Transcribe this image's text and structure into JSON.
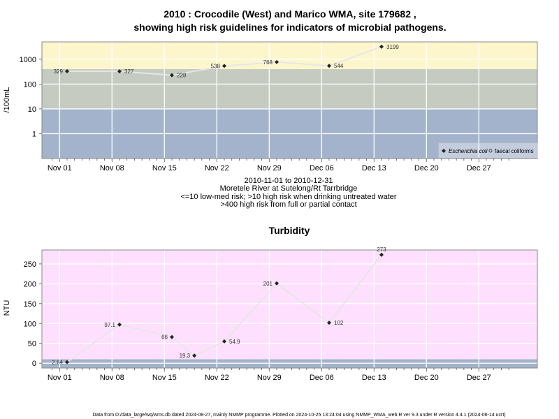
{
  "chart_data": [
    {
      "type": "line",
      "title": "2010 : Crocodile (West) and Marico WMA, site 179682 ,",
      "subtitle": "showing high risk guidelines for indicators of microbial pathogens.",
      "ylabel": "/100mL",
      "y_scale": "log",
      "y_ticks": [
        "1",
        "10",
        "100",
        "1000"
      ],
      "x_ticks": [
        "Nov 01",
        "Nov 08",
        "Nov 15",
        "Nov 22",
        "Nov 29",
        "Dec 06",
        "Dec 13",
        "Dec 20",
        "Dec 27"
      ],
      "risk_bands": [
        {
          "range": [
            0,
            10
          ],
          "color": "#a3b3cc"
        },
        {
          "range": [
            10,
            400
          ],
          "color": "#c5cbc0"
        },
        {
          "range": [
            400,
            10000
          ],
          "color": "#fdf6cd"
        }
      ],
      "series": [
        {
          "name": "Escherichia coli",
          "x": [
            "2010-11-02",
            "2010-11-09",
            "2010-11-16",
            "2010-11-23",
            "2010-11-30",
            "2010-12-07",
            "2010-12-14"
          ],
          "values": [
            329,
            327,
            228,
            538,
            768,
            544,
            3199
          ],
          "labels": [
            "329",
            "327",
            "228",
            "538",
            "768",
            "544",
            "3199"
          ]
        }
      ],
      "legend": {
        "position": "bottom-right",
        "entries": [
          "Escherichia coli",
          "faecal coliforms"
        ]
      },
      "caption": [
        "2010-11-01 to 2010-12-31",
        "Moretele River at Sutelong/Rt Tarrbridge",
        "<=10 low-med risk; >10 high risk when drinking untreated water",
        ">400 high risk from full or partial contact"
      ],
      "grid": true
    },
    {
      "type": "line",
      "title": "Turbidity",
      "ylabel": "NTU",
      "y_ticks": [
        "0",
        "50",
        "100",
        "150",
        "200",
        "250"
      ],
      "x_ticks": [
        "Nov 01",
        "Nov 08",
        "Nov 15",
        "Nov 22",
        "Nov 29",
        "Dec 06",
        "Dec 13",
        "Dec 20",
        "Dec 27"
      ],
      "risk_bands": [
        {
          "range": [
            -12,
            10
          ],
          "color": "#a3b3cc"
        },
        {
          "range": [
            10,
            285
          ],
          "color": "#fee0fe"
        }
      ],
      "series": [
        {
          "name": "Turbidity",
          "x": [
            "2010-11-02",
            "2010-11-09",
            "2010-11-16",
            "2010-11-19",
            "2010-11-23",
            "2010-11-30",
            "2010-12-07",
            "2010-12-14"
          ],
          "values": [
            2.84,
            97.1,
            66,
            19.3,
            54.9,
            201,
            102,
            273
          ],
          "labels": [
            "2.84",
            "97.1",
            "66",
            "19.3",
            "54.9",
            "201",
            "102",
            "273"
          ]
        }
      ],
      "grid": true
    }
  ],
  "footer": "Data from D:/data_large/wq/wms.db dated 2024-08-27, mainly NMMP programme. Plotted on 2024-10-25 13:24:04 using NMMP_WMA_web.R ver 9.3 under R version 4.4.1 (2024-06-14 ucrt)"
}
